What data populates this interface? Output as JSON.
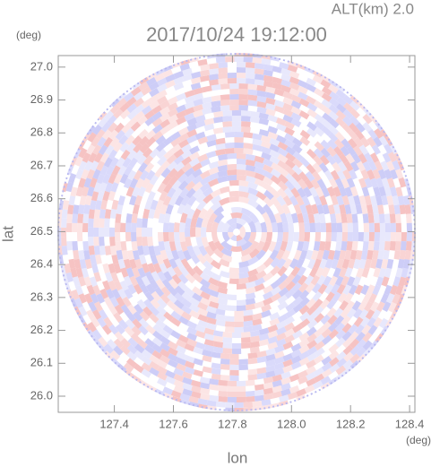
{
  "chart_data": {
    "type": "radar-ppi",
    "title": "2017/10/24 19:12:00",
    "subtitle": "ALT(km) 2.0",
    "x_label": "lon",
    "y_label": "lat",
    "x_unit": "(deg)",
    "y_unit": "(deg)",
    "xlim": [
      127.21,
      128.418
    ],
    "ylim": [
      25.951,
      27.035
    ],
    "xticks": [
      127.4,
      127.6,
      127.8,
      {
        "value": 128,
        "label": "128.0"
      },
      128.2,
      128.4
    ],
    "yticks": [
      {
        "value": 26,
        "label": "26.0"
      },
      26.1,
      26.2,
      26.3,
      26.4,
      26.5,
      26.6,
      26.7,
      26.8,
      26.9,
      {
        "value": 27,
        "label": "27.0"
      }
    ]
  }
}
